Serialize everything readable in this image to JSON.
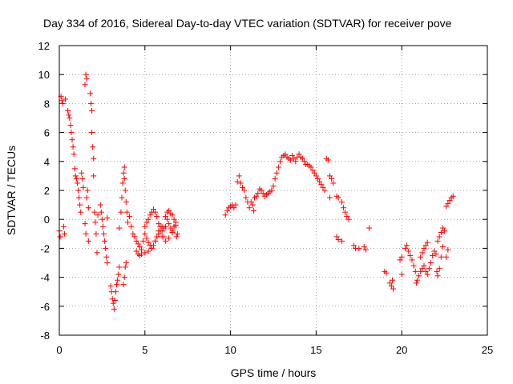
{
  "chart_data": {
    "type": "scatter",
    "title": "Day 334 of 2016, Sidereal Day-to-day VTEC variation (SDTVAR) for receiver pove",
    "xlabel": "GPS time / hours",
    "ylabel": "SDTVAR / TECUs",
    "xlim": [
      0,
      25
    ],
    "ylim": [
      -8,
      12
    ],
    "xticks": [
      0,
      5,
      10,
      15,
      20,
      25
    ],
    "yticks": [
      -8,
      -6,
      -4,
      -2,
      0,
      2,
      4,
      6,
      8,
      10,
      12
    ],
    "xtick_labels": [
      "0",
      "5",
      "10",
      "15",
      "20",
      "25"
    ],
    "ytick_labels": [
      "-8",
      "-6",
      "-4",
      "-2",
      "0",
      "2",
      "4",
      "6",
      "8",
      "10",
      "12"
    ],
    "grid": true,
    "marker": "plus",
    "marker_color": "#ff0000",
    "series": [
      {
        "name": "SDTVAR",
        "points": [
          [
            0.0,
            -0.8
          ],
          [
            0.05,
            -1.2
          ],
          [
            0.1,
            8.5
          ],
          [
            0.15,
            8.2
          ],
          [
            0.2,
            8.0
          ],
          [
            0.25,
            -0.5
          ],
          [
            0.3,
            -1.0
          ],
          [
            0.35,
            8.3
          ],
          [
            0.5,
            7.5
          ],
          [
            0.55,
            7.2
          ],
          [
            0.6,
            7.0
          ],
          [
            0.65,
            6.5
          ],
          [
            0.7,
            6.0
          ],
          [
            0.75,
            5.5
          ],
          [
            0.8,
            5.0
          ],
          [
            0.85,
            4.5
          ],
          [
            0.9,
            3.5
          ],
          [
            0.95,
            3.0
          ],
          [
            1.0,
            2.8
          ],
          [
            1.05,
            2.5
          ],
          [
            1.1,
            2.0
          ],
          [
            1.15,
            1.5
          ],
          [
            1.2,
            1.0
          ],
          [
            1.25,
            0.5
          ],
          [
            1.3,
            3.2
          ],
          [
            1.35,
            2.8
          ],
          [
            1.4,
            2.2
          ],
          [
            1.5,
            9.3
          ],
          [
            1.55,
            10.0
          ],
          [
            1.6,
            9.7
          ],
          [
            1.5,
            -0.3
          ],
          [
            1.55,
            -1.0
          ],
          [
            1.6,
            1.5
          ],
          [
            1.65,
            2.0
          ],
          [
            1.7,
            0.8
          ],
          [
            1.7,
            -1.5
          ],
          [
            1.8,
            8.7
          ],
          [
            1.85,
            8.0
          ],
          [
            1.9,
            7.5
          ],
          [
            1.9,
            6.0
          ],
          [
            1.95,
            5.0
          ],
          [
            2.0,
            4.2
          ],
          [
            2.0,
            3.0
          ],
          [
            2.05,
            0.5
          ],
          [
            2.1,
            -0.2
          ],
          [
            2.15,
            -1.0
          ],
          [
            2.2,
            -2.3
          ],
          [
            2.25,
            0.3
          ],
          [
            2.4,
            1.0
          ],
          [
            2.45,
            0.5
          ],
          [
            2.5,
            0.0
          ],
          [
            2.55,
            -0.5
          ],
          [
            2.6,
            -1.0
          ],
          [
            2.65,
            -1.5
          ],
          [
            2.7,
            -2.0
          ],
          [
            2.75,
            -2.6
          ],
          [
            2.8,
            -3.0
          ],
          [
            2.8,
            0.1
          ],
          [
            3.0,
            -4.6
          ],
          [
            3.05,
            -5.0
          ],
          [
            3.1,
            -5.5
          ],
          [
            3.15,
            -5.8
          ],
          [
            3.2,
            -6.2
          ],
          [
            3.25,
            -5.6
          ],
          [
            3.3,
            -5.0
          ],
          [
            3.35,
            -4.5
          ],
          [
            3.4,
            -4.2
          ],
          [
            3.45,
            -3.8
          ],
          [
            3.5,
            -3.3
          ],
          [
            3.5,
            -0.6
          ],
          [
            3.6,
            0.5
          ],
          [
            3.65,
            1.5
          ],
          [
            3.7,
            2.5
          ],
          [
            3.75,
            3.2
          ],
          [
            3.8,
            3.6
          ],
          [
            3.8,
            2.8
          ],
          [
            3.85,
            2.0
          ],
          [
            3.9,
            1.2
          ],
          [
            3.95,
            0.5
          ],
          [
            4.0,
            -0.2
          ],
          [
            3.8,
            -4.0
          ],
          [
            3.85,
            -3.3
          ],
          [
            3.75,
            -4.5
          ],
          [
            3.9,
            -3.0
          ],
          [
            4.1,
            0.2
          ],
          [
            4.2,
            -0.5
          ],
          [
            4.3,
            -1.0
          ],
          [
            4.4,
            -1.2
          ],
          [
            4.5,
            -1.5
          ],
          [
            4.6,
            -1.7
          ],
          [
            4.7,
            -1.9
          ],
          [
            4.8,
            -2.1
          ],
          [
            4.9,
            -1.5
          ],
          [
            5.0,
            -1.0
          ],
          [
            5.1,
            -1.3
          ],
          [
            5.2,
            -1.6
          ],
          [
            5.3,
            -1.8
          ],
          [
            5.4,
            -2.0
          ],
          [
            5.5,
            -1.8
          ],
          [
            5.6,
            -1.5
          ],
          [
            5.7,
            -1.2
          ],
          [
            5.8,
            -0.8
          ],
          [
            5.9,
            -0.5
          ],
          [
            6.0,
            -0.8
          ],
          [
            6.1,
            -1.2
          ],
          [
            6.2,
            -0.5
          ],
          [
            6.3,
            0.0
          ],
          [
            6.4,
            -0.3
          ],
          [
            6.5,
            -0.6
          ],
          [
            6.6,
            -0.8
          ],
          [
            6.7,
            -0.5
          ],
          [
            6.8,
            -0.2
          ],
          [
            6.9,
            -1.0
          ],
          [
            5.0,
            -0.5
          ],
          [
            5.1,
            -0.2
          ],
          [
            5.2,
            0.0
          ],
          [
            5.3,
            0.3
          ],
          [
            5.4,
            0.5
          ],
          [
            5.5,
            0.7
          ],
          [
            5.6,
            0.5
          ],
          [
            5.7,
            0.2
          ],
          [
            5.8,
            -0.3
          ],
          [
            5.9,
            -0.8
          ],
          [
            6.0,
            -1.2
          ],
          [
            6.1,
            -0.6
          ],
          [
            6.2,
            0.2
          ],
          [
            6.3,
            0.5
          ],
          [
            6.4,
            0.6
          ],
          [
            6.5,
            0.4
          ],
          [
            6.6,
            0.3
          ],
          [
            6.7,
            0.0
          ],
          [
            6.8,
            -0.4
          ],
          [
            6.85,
            -1.2
          ],
          [
            4.5,
            -2.2
          ],
          [
            4.6,
            -2.4
          ],
          [
            4.7,
            -2.5
          ],
          [
            4.8,
            -2.4
          ],
          [
            5.0,
            -2.3
          ],
          [
            5.2,
            -2.2
          ],
          [
            5.4,
            -2.0
          ],
          [
            5.6,
            -1.5
          ],
          [
            5.8,
            -1.0
          ],
          [
            6.0,
            -0.5
          ],
          [
            6.2,
            -1.5
          ],
          [
            6.4,
            -1.3
          ],
          [
            6.6,
            -0.9
          ],
          [
            9.7,
            0.3
          ],
          [
            9.8,
            0.6
          ],
          [
            9.9,
            0.8
          ],
          [
            10.0,
            0.9
          ],
          [
            10.1,
            1.0
          ],
          [
            10.2,
            0.8
          ],
          [
            10.3,
            1.0
          ],
          [
            10.4,
            2.6
          ],
          [
            10.5,
            3.0
          ],
          [
            10.6,
            2.5
          ],
          [
            10.7,
            2.2
          ],
          [
            10.8,
            2.0
          ],
          [
            10.9,
            1.5
          ],
          [
            11.0,
            1.2
          ],
          [
            11.1,
            0.8
          ],
          [
            11.2,
            1.2
          ],
          [
            11.3,
            1.0
          ],
          [
            11.35,
            0.6
          ],
          [
            11.4,
            1.5
          ],
          [
            11.5,
            1.6
          ],
          [
            11.6,
            1.8
          ],
          [
            11.7,
            2.1
          ],
          [
            11.8,
            2.0
          ],
          [
            11.9,
            1.8
          ],
          [
            12.0,
            1.6
          ],
          [
            12.1,
            1.7
          ],
          [
            12.2,
            1.8
          ],
          [
            12.3,
            1.9
          ],
          [
            12.4,
            2.0
          ],
          [
            12.5,
            2.3
          ],
          [
            12.6,
            2.8
          ],
          [
            12.7,
            3.2
          ],
          [
            12.8,
            3.6
          ],
          [
            12.9,
            4.0
          ],
          [
            13.0,
            4.3
          ],
          [
            13.1,
            4.4
          ],
          [
            13.2,
            4.5
          ],
          [
            13.3,
            4.3
          ],
          [
            13.4,
            4.2
          ],
          [
            13.5,
            4.1
          ],
          [
            13.6,
            4.4
          ],
          [
            13.7,
            4.2
          ],
          [
            13.8,
            4.0
          ],
          [
            13.9,
            4.3
          ],
          [
            14.0,
            4.5
          ],
          [
            14.1,
            4.3
          ],
          [
            14.2,
            4.2
          ],
          [
            14.3,
            4.0
          ],
          [
            14.4,
            3.8
          ],
          [
            14.5,
            3.8
          ],
          [
            14.6,
            3.7
          ],
          [
            14.7,
            3.6
          ],
          [
            14.8,
            3.4
          ],
          [
            14.9,
            3.2
          ],
          [
            15.0,
            3.0
          ],
          [
            15.1,
            2.8
          ],
          [
            15.2,
            2.6
          ],
          [
            15.3,
            2.4
          ],
          [
            15.4,
            2.2
          ],
          [
            15.5,
            2.0
          ],
          [
            15.6,
            4.2
          ],
          [
            15.7,
            4.1
          ],
          [
            15.8,
            3.0
          ],
          [
            15.9,
            2.8
          ],
          [
            16.0,
            2.5
          ],
          [
            15.8,
            1.5
          ],
          [
            16.2,
            1.6
          ],
          [
            16.3,
            1.5
          ],
          [
            16.5,
            1.2
          ],
          [
            16.6,
            0.8
          ],
          [
            16.7,
            0.5
          ],
          [
            16.8,
            0.2
          ],
          [
            16.9,
            0.0
          ],
          [
            16.2,
            -1.2
          ],
          [
            16.3,
            -1.4
          ],
          [
            16.5,
            -1.5
          ],
          [
            17.2,
            -1.8
          ],
          [
            17.3,
            -2.0
          ],
          [
            17.5,
            -2.0
          ],
          [
            17.8,
            -1.9
          ],
          [
            17.9,
            -2.1
          ],
          [
            18.1,
            -0.6
          ],
          [
            19.0,
            -3.6
          ],
          [
            19.1,
            -3.7
          ],
          [
            19.3,
            -4.4
          ],
          [
            19.4,
            -4.6
          ],
          [
            19.5,
            -4.8
          ],
          [
            19.45,
            -4.2
          ],
          [
            19.9,
            -2.8
          ],
          [
            20.0,
            -2.6
          ],
          [
            20.0,
            -3.8
          ],
          [
            20.2,
            -2.0
          ],
          [
            20.3,
            -1.8
          ],
          [
            20.4,
            -2.2
          ],
          [
            20.5,
            -2.5
          ],
          [
            20.6,
            -2.8
          ],
          [
            20.7,
            -3.2
          ],
          [
            20.8,
            -3.6
          ],
          [
            20.85,
            -4.4
          ],
          [
            20.9,
            -4.2
          ],
          [
            21.0,
            -3.9
          ],
          [
            21.1,
            -3.6
          ],
          [
            21.2,
            -3.4
          ],
          [
            21.1,
            -2.6
          ],
          [
            21.2,
            -2.3
          ],
          [
            21.3,
            -2.0
          ],
          [
            21.4,
            -1.8
          ],
          [
            21.5,
            -1.6
          ],
          [
            21.3,
            -3.2
          ],
          [
            21.4,
            -3.6
          ],
          [
            21.5,
            -3.8
          ],
          [
            21.6,
            -3.4
          ],
          [
            21.7,
            -3.0
          ],
          [
            21.8,
            -2.5
          ],
          [
            21.9,
            -2.2
          ],
          [
            22.0,
            -2.4
          ],
          [
            22.05,
            -3.6
          ],
          [
            22.1,
            -3.9
          ],
          [
            22.2,
            -3.4
          ],
          [
            22.3,
            -2.6
          ],
          [
            22.1,
            -1.5
          ],
          [
            22.2,
            -1.2
          ],
          [
            22.3,
            -0.9
          ],
          [
            22.4,
            -0.6
          ],
          [
            22.5,
            -0.8
          ],
          [
            22.4,
            -1.9
          ],
          [
            22.6,
            -2.6
          ],
          [
            22.7,
            -2.1
          ],
          [
            22.6,
            0.9
          ],
          [
            22.7,
            1.1
          ],
          [
            22.8,
            1.3
          ],
          [
            22.9,
            1.5
          ],
          [
            23.0,
            1.6
          ]
        ]
      }
    ]
  }
}
